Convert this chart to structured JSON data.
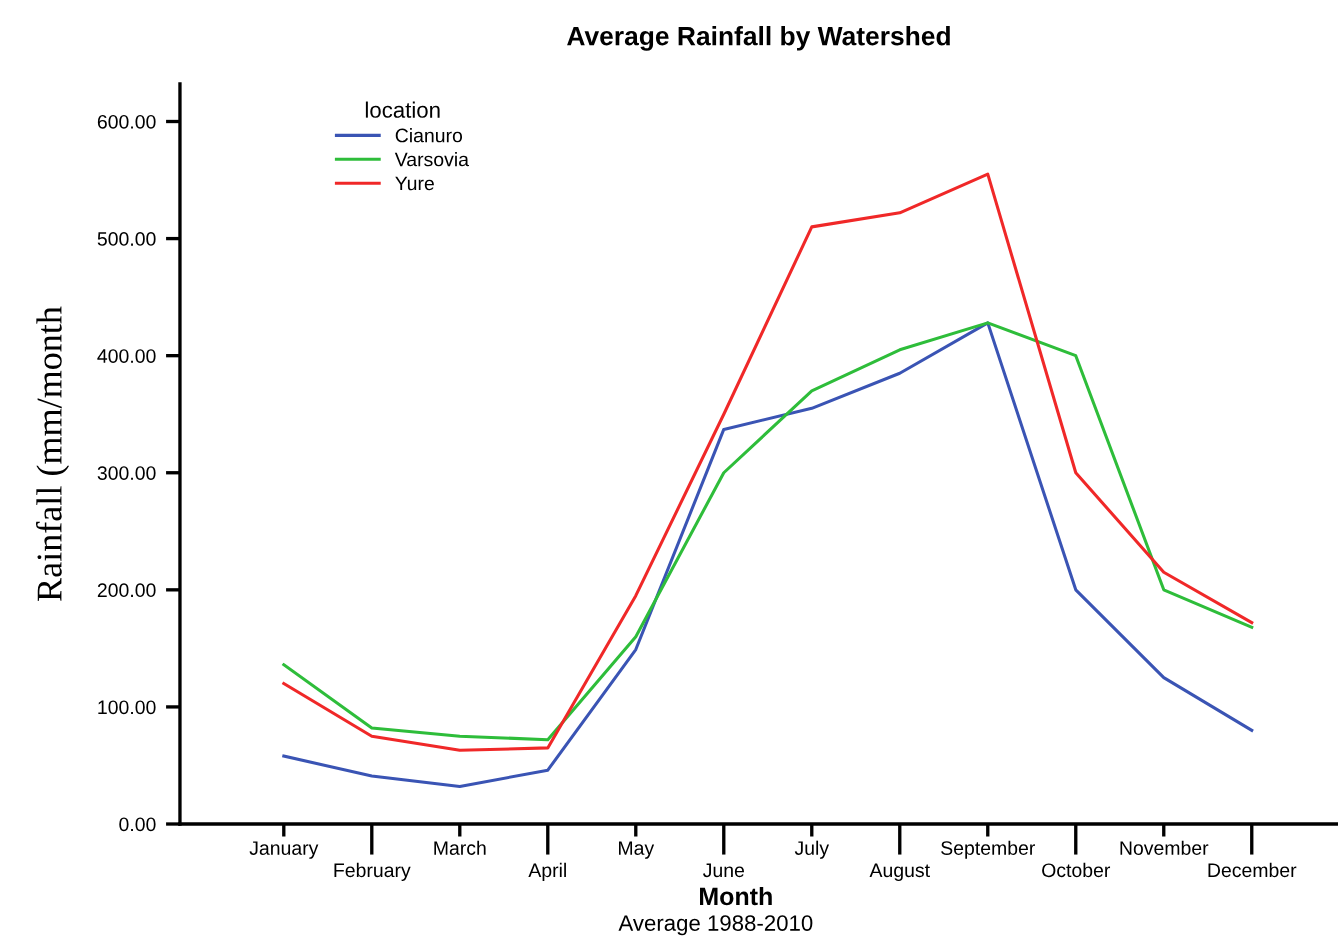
{
  "chart_data": {
    "type": "line",
    "title": "Average Rainfall by Watershed",
    "xlabel": "Month",
    "ylabel": "Rainfall (mm/month",
    "legend_title": "location",
    "annotations": [
      "Average 1988-2010"
    ],
    "categories": [
      "January",
      "February",
      "March",
      "April",
      "May",
      "June",
      "July",
      "August",
      "September",
      "October",
      "November",
      "December"
    ],
    "series": [
      {
        "name": "Cianuro",
        "color": "#3a54b4",
        "values": [
          58,
          41,
          32,
          46,
          149,
          337,
          355,
          385,
          428,
          200,
          125,
          80
        ]
      },
      {
        "name": "Varsovia",
        "color": "#2ebd3a",
        "values": [
          136,
          82,
          75,
          72,
          160,
          300,
          370,
          405,
          428,
          400,
          200,
          168
        ]
      },
      {
        "name": "Yure",
        "color": "#f02828",
        "values": [
          120,
          75,
          63,
          65,
          195,
          350,
          510,
          522,
          555,
          300,
          215,
          172
        ]
      }
    ],
    "ylim": [
      0,
      632
    ],
    "yticks": [
      {
        "value": 0,
        "label": "0.00"
      },
      {
        "value": 100,
        "label": "100.00"
      },
      {
        "value": 200,
        "label": "200.00"
      },
      {
        "value": 300,
        "label": "300.00"
      },
      {
        "value": 400,
        "label": "400.00"
      },
      {
        "value": 500,
        "label": "500.00"
      },
      {
        "value": 600,
        "label": "600.00"
      }
    ],
    "grid": false,
    "legend": "top left",
    "marker": "none",
    "line_style": "solid"
  }
}
